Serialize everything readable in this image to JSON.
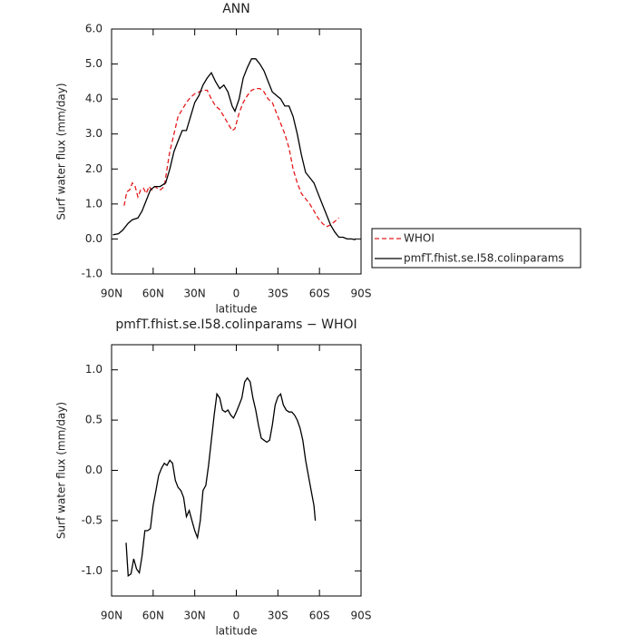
{
  "chart_data": [
    {
      "type": "line",
      "title": "ANN",
      "xlabel": "latitude",
      "ylabel": "Surf water flux (mm/day)",
      "xlim": [
        90,
        -90
      ],
      "xticks": [
        {
          "value": 90,
          "label": "90N"
        },
        {
          "value": 60,
          "label": "60N"
        },
        {
          "value": 30,
          "label": "30N"
        },
        0,
        {
          "value": -30,
          "label": "30S"
        },
        {
          "value": -60,
          "label": "60S"
        },
        {
          "value": -90,
          "label": "90S"
        }
      ],
      "ylim": [
        -1,
        6
      ],
      "yticks": [
        {
          "value": -1,
          "label": "-1.0"
        },
        {
          "value": 0,
          "label": "0.0"
        },
        {
          "value": 1,
          "label": "1.0"
        },
        {
          "value": 2,
          "label": "2.0"
        },
        {
          "value": 3,
          "label": "3.0"
        },
        {
          "value": 4,
          "label": "4.0"
        },
        {
          "value": 5,
          "label": "5.0"
        },
        {
          "value": 6,
          "label": "6.0"
        }
      ],
      "legend": "right",
      "series": [
        {
          "name": "WHOI",
          "color": "#e41a1c",
          "dash": true,
          "x": [
            81,
            79,
            77,
            75,
            73,
            71,
            69,
            67,
            65,
            63,
            61,
            59,
            57,
            55,
            52,
            50,
            48,
            45,
            42,
            39,
            36,
            33,
            30,
            27,
            24,
            21,
            18,
            15,
            12,
            9,
            6,
            3,
            1,
            -2,
            -5,
            -8,
            -11,
            -14,
            -17,
            -20,
            -23,
            -26,
            -29,
            -32,
            -35,
            -38,
            -41,
            -44,
            -47,
            -50,
            -53,
            -56,
            -59,
            -62,
            -65,
            -68,
            -71,
            -74
          ],
          "values": [
            0.95,
            1.35,
            1.4,
            1.6,
            1.5,
            1.2,
            1.4,
            1.45,
            1.3,
            1.5,
            1.4,
            1.5,
            1.45,
            1.4,
            1.5,
            2.0,
            2.5,
            3.0,
            3.5,
            3.7,
            3.9,
            4.05,
            4.15,
            4.2,
            4.25,
            4.25,
            4.0,
            3.8,
            3.7,
            3.5,
            3.3,
            3.1,
            3.15,
            3.6,
            3.9,
            4.1,
            4.25,
            4.3,
            4.3,
            4.2,
            4.0,
            3.9,
            3.6,
            3.3,
            3.0,
            2.6,
            2.0,
            1.6,
            1.3,
            1.15,
            1.0,
            0.8,
            0.6,
            0.45,
            0.35,
            0.4,
            0.5,
            0.6
          ]
        },
        {
          "name": "pmfT.fhist.se.I58.colinparams",
          "color": "#000000",
          "dash": false,
          "x": [
            89,
            85,
            82,
            78,
            75,
            71,
            68,
            65,
            62,
            59,
            55,
            51,
            48,
            45,
            42,
            39,
            36,
            33,
            30,
            27,
            24,
            21,
            18,
            15,
            12,
            9,
            6,
            3,
            1,
            -2,
            -5,
            -8,
            -11,
            -14,
            -17,
            -20,
            -23,
            -26,
            -29,
            -32,
            -35,
            -38,
            -41,
            -44,
            -47,
            -50,
            -53,
            -56,
            -59,
            -62,
            -65,
            -68,
            -71,
            -74,
            -77,
            -80,
            -83,
            -86
          ],
          "values": [
            0.12,
            0.15,
            0.25,
            0.45,
            0.55,
            0.6,
            0.8,
            1.1,
            1.4,
            1.5,
            1.5,
            1.6,
            2.0,
            2.5,
            2.8,
            3.1,
            3.1,
            3.5,
            3.9,
            4.1,
            4.4,
            4.6,
            4.75,
            4.5,
            4.3,
            4.4,
            4.2,
            3.8,
            3.65,
            4.0,
            4.6,
            4.9,
            5.15,
            5.15,
            5.0,
            4.8,
            4.5,
            4.2,
            4.1,
            4.0,
            3.8,
            3.8,
            3.5,
            3.0,
            2.4,
            1.9,
            1.75,
            1.6,
            1.3,
            1.0,
            0.7,
            0.4,
            0.2,
            0.05,
            0.05,
            0.0,
            0.0,
            -0.02
          ]
        }
      ]
    },
    {
      "type": "line",
      "title": "pmfT.fhist.se.I58.colinparams − WHOI",
      "xlabel": "latitude",
      "ylabel": "Surf water flux (mm/day)",
      "xlim": [
        90,
        -90
      ],
      "xticks": [
        {
          "value": 90,
          "label": "90N"
        },
        {
          "value": 60,
          "label": "60N"
        },
        {
          "value": 30,
          "label": "30N"
        },
        0,
        {
          "value": -30,
          "label": "30S"
        },
        {
          "value": -60,
          "label": "60S"
        },
        {
          "value": -90,
          "label": "90S"
        }
      ],
      "ylim": [
        -1.25,
        1.25
      ],
      "yticks": [
        {
          "value": -1,
          "label": "-1.0"
        },
        -0.5,
        {
          "value": 0,
          "label": "0.0"
        },
        0.5,
        {
          "value": 1,
          "label": "1.0"
        }
      ],
      "series": [
        {
          "color": "#000000",
          "dash": false,
          "x": [
            79.5,
            78,
            76,
            74,
            72,
            70,
            68,
            66,
            64,
            62,
            60,
            58,
            56,
            54,
            52,
            50,
            48,
            46,
            44,
            42,
            40,
            38,
            36,
            34,
            32,
            30,
            28,
            26,
            24,
            22,
            20,
            18,
            16,
            14,
            12,
            10,
            8,
            6,
            4,
            2,
            0,
            -2,
            -4,
            -6,
            -8,
            -10,
            -12,
            -14,
            -16,
            -18,
            -20,
            -22,
            -24,
            -26,
            -28,
            -30,
            -32,
            -34,
            -36,
            -38,
            -40,
            -42,
            -44,
            -46,
            -48,
            -50,
            -52,
            -54,
            -56,
            -57
          ],
          "values": [
            -0.72,
            -1.05,
            -1.03,
            -0.88,
            -0.98,
            -1.02,
            -0.85,
            -0.6,
            -0.6,
            -0.58,
            -0.35,
            -0.2,
            -0.05,
            0.02,
            0.07,
            0.05,
            0.1,
            0.07,
            -0.1,
            -0.17,
            -0.2,
            -0.27,
            -0.46,
            -0.4,
            -0.5,
            -0.6,
            -0.67,
            -0.5,
            -0.2,
            -0.15,
            0.05,
            0.3,
            0.55,
            0.76,
            0.72,
            0.6,
            0.58,
            0.6,
            0.55,
            0.52,
            0.58,
            0.65,
            0.72,
            0.88,
            0.92,
            0.88,
            0.72,
            0.6,
            0.45,
            0.32,
            0.3,
            0.28,
            0.3,
            0.45,
            0.65,
            0.73,
            0.76,
            0.65,
            0.6,
            0.58,
            0.58,
            0.55,
            0.5,
            0.42,
            0.3,
            0.1,
            -0.05,
            -0.2,
            -0.35,
            -0.5
          ]
        }
      ]
    }
  ]
}
